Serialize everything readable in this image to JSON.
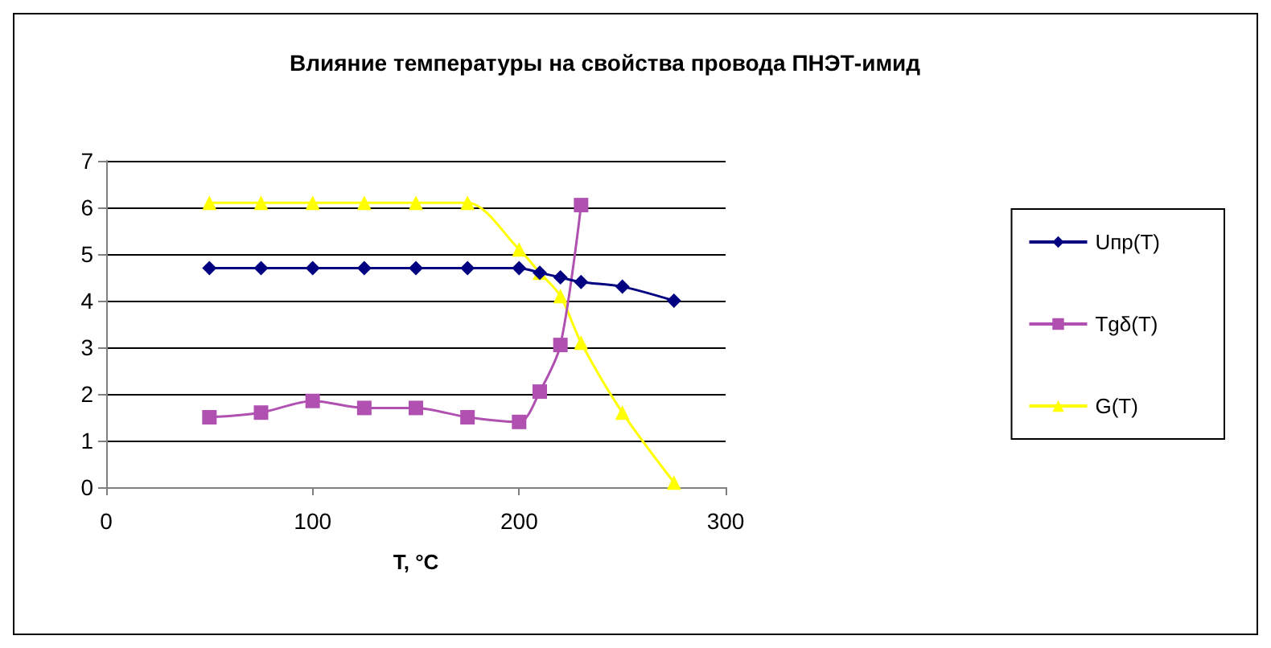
{
  "chart_data": {
    "type": "line",
    "title": "Влияние температуры на свойства провода ПНЭТ-имид",
    "xlabel": "T, °C",
    "xlim": [
      0,
      300
    ],
    "xticks": [
      0,
      100,
      200,
      300
    ],
    "ylim": [
      0,
      7
    ],
    "yticks": [
      0,
      1,
      2,
      3,
      4,
      5,
      6,
      7
    ],
    "grid": "y",
    "legend": "right",
    "series": [
      {
        "name": "Uпр(T)",
        "color": "#000080",
        "marker": "diamond",
        "x": [
          50,
          75,
          100,
          125,
          150,
          175,
          200,
          210,
          220,
          230,
          250,
          275
        ],
        "values": [
          4.7,
          4.7,
          4.7,
          4.7,
          4.7,
          4.7,
          4.7,
          4.6,
          4.5,
          4.4,
          4.3,
          4.0
        ]
      },
      {
        "name": "Tgδ(T)",
        "color": "#b050b0",
        "marker": "square",
        "x": [
          50,
          75,
          100,
          125,
          150,
          175,
          200,
          210,
          220,
          230
        ],
        "values": [
          1.5,
          1.6,
          1.85,
          1.7,
          1.7,
          1.5,
          1.4,
          2.05,
          3.05,
          6.05
        ]
      },
      {
        "name": "G(T)",
        "color": "#ffff00",
        "marker": "triangle",
        "x": [
          50,
          75,
          100,
          125,
          150,
          175,
          200,
          210,
          220,
          230,
          250,
          275
        ],
        "values": [
          6.1,
          6.1,
          6.1,
          6.1,
          6.1,
          6.1,
          5.1,
          4.6,
          4.1,
          3.1,
          1.6,
          0.1
        ]
      }
    ]
  }
}
